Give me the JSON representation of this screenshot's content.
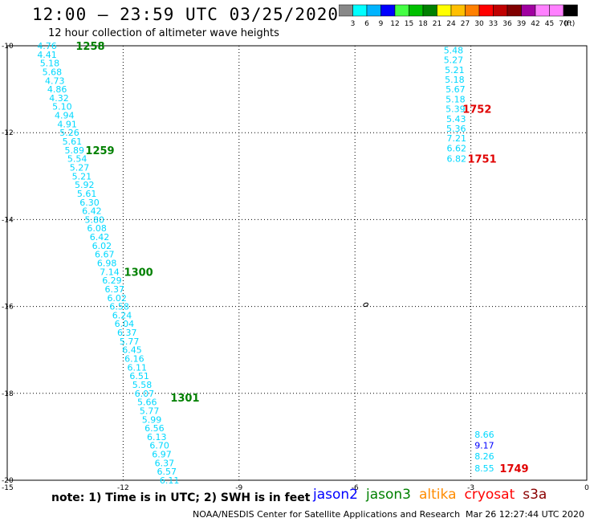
{
  "header": {
    "title": "12:00 – 23:59 UTC 03/25/2020",
    "subtitle": "12 hour collection of altimeter wave heights"
  },
  "legend": {
    "colors": [
      "#888888",
      "#00ffff",
      "#00b4ff",
      "#0000ff",
      "#44ff44",
      "#00c000",
      "#008000",
      "#ffff00",
      "#ffbf00",
      "#ff8000",
      "#ff0000",
      "#c00000",
      "#800000",
      "#a000a0",
      "#ff80ff",
      "#ff80ff",
      "#000000"
    ],
    "labels": [
      "3",
      "6",
      "9",
      "12",
      "15",
      "18",
      "21",
      "24",
      "27",
      "30",
      "33",
      "36",
      "39",
      "42",
      "45",
      "70"
    ],
    "unit": "(ft)"
  },
  "chart_data": {
    "type": "map",
    "x_ticks": [
      "-15",
      "-12",
      "-9",
      "-6",
      "-3",
      "0"
    ],
    "y_ticks": [
      "-10",
      "-12",
      "-14",
      "-16",
      "-18",
      "-20"
    ],
    "xlim": [
      -15,
      0
    ],
    "ylim": [
      -20,
      -10
    ],
    "lon_grid": [
      -12,
      -9,
      -6,
      -3
    ],
    "lat_grid": [
      -12,
      -14,
      -16,
      -18
    ],
    "island": {
      "lon": -5.72,
      "lat": -15.96
    },
    "tracks": [
      {
        "satellite": "jason3",
        "color": "#00d8ff",
        "points": [
          {
            "lon": -13.97,
            "lat": -10.0,
            "v": "4.76"
          },
          {
            "lon": -13.97,
            "lat": -10.2,
            "v": "4.41"
          },
          {
            "lon": -13.9,
            "lat": -10.4,
            "v": "5.18"
          },
          {
            "lon": -13.84,
            "lat": -10.6,
            "v": "5.68"
          },
          {
            "lon": -13.77,
            "lat": -10.8,
            "v": "4.73"
          },
          {
            "lon": -13.71,
            "lat": -11.0,
            "v": "4.86"
          },
          {
            "lon": -13.66,
            "lat": -11.2,
            "v": "4.32"
          },
          {
            "lon": -13.58,
            "lat": -11.4,
            "v": "5.10"
          },
          {
            "lon": -13.52,
            "lat": -11.6,
            "v": "4.94"
          },
          {
            "lon": -13.45,
            "lat": -11.8,
            "v": "4.91"
          },
          {
            "lon": -13.39,
            "lat": -12.0,
            "v": "5.26"
          },
          {
            "lon": -13.32,
            "lat": -12.2,
            "v": "5.61"
          },
          {
            "lon": -13.26,
            "lat": -12.4,
            "v": "5.89"
          },
          {
            "lon": -13.19,
            "lat": -12.6,
            "v": "5.54"
          },
          {
            "lon": -13.13,
            "lat": -12.8,
            "v": "5.27"
          },
          {
            "lon": -13.07,
            "lat": -13.0,
            "v": "5.21"
          },
          {
            "lon": -13.0,
            "lat": -13.2,
            "v": "5.92"
          },
          {
            "lon": -12.94,
            "lat": -13.4,
            "v": "5.61"
          },
          {
            "lon": -12.87,
            "lat": -13.6,
            "v": "6.30"
          },
          {
            "lon": -12.81,
            "lat": -13.8,
            "v": "6.42"
          },
          {
            "lon": -12.74,
            "lat": -14.0,
            "v": "5.80"
          },
          {
            "lon": -12.68,
            "lat": -14.2,
            "v": "6.08"
          },
          {
            "lon": -12.61,
            "lat": -14.4,
            "v": "6.42"
          },
          {
            "lon": -12.55,
            "lat": -14.6,
            "v": "6.02"
          },
          {
            "lon": -12.48,
            "lat": -14.8,
            "v": "6.67"
          },
          {
            "lon": -12.42,
            "lat": -15.0,
            "v": "6.98"
          },
          {
            "lon": -12.35,
            "lat": -15.2,
            "v": "7.14"
          },
          {
            "lon": -12.29,
            "lat": -15.4,
            "v": "6.29"
          },
          {
            "lon": -12.22,
            "lat": -15.6,
            "v": "6.37"
          },
          {
            "lon": -12.16,
            "lat": -15.8,
            "v": "6.02"
          },
          {
            "lon": -12.1,
            "lat": -16.0,
            "v": "6.58"
          },
          {
            "lon": -12.03,
            "lat": -16.2,
            "v": "6.24"
          },
          {
            "lon": -11.97,
            "lat": -16.4,
            "v": "6.04"
          },
          {
            "lon": -11.9,
            "lat": -16.6,
            "v": "6.37"
          },
          {
            "lon": -11.84,
            "lat": -16.8,
            "v": "5.77"
          },
          {
            "lon": -11.77,
            "lat": -17.0,
            "v": "6.45"
          },
          {
            "lon": -11.71,
            "lat": -17.2,
            "v": "6.16"
          },
          {
            "lon": -11.64,
            "lat": -17.4,
            "v": "6.11"
          },
          {
            "lon": -11.58,
            "lat": -17.6,
            "v": "6.51"
          },
          {
            "lon": -11.51,
            "lat": -17.8,
            "v": "5.58"
          },
          {
            "lon": -11.45,
            "lat": -18.0,
            "v": "6.07"
          },
          {
            "lon": -11.38,
            "lat": -18.2,
            "v": "5.66"
          },
          {
            "lon": -11.32,
            "lat": -18.4,
            "v": "5.77"
          },
          {
            "lon": -11.26,
            "lat": -18.6,
            "v": "5.99"
          },
          {
            "lon": -11.19,
            "lat": -18.8,
            "v": "6.56"
          },
          {
            "lon": -11.13,
            "lat": -19.0,
            "v": "6.13"
          },
          {
            "lon": -11.06,
            "lat": -19.2,
            "v": "6.70"
          },
          {
            "lon": -11.0,
            "lat": -19.4,
            "v": "6.97"
          },
          {
            "lon": -10.93,
            "lat": -19.6,
            "v": "6.37"
          },
          {
            "lon": -10.87,
            "lat": -19.8,
            "v": "6.57"
          },
          {
            "lon": -10.8,
            "lat": -20.0,
            "v": "6.11"
          }
        ],
        "times": [
          {
            "lon": -12.85,
            "lat": -10.0,
            "t": "1258"
          },
          {
            "lon": -12.6,
            "lat": -12.4,
            "t": "1259"
          },
          {
            "lon": -11.6,
            "lat": -15.2,
            "t": "1300"
          },
          {
            "lon": -10.4,
            "lat": -18.1,
            "t": "1301"
          }
        ]
      },
      {
        "satellite": "cryosat",
        "color": "#00d8ff",
        "points": [
          {
            "lon": -3.45,
            "lat": -10.1,
            "v": "5.48"
          },
          {
            "lon": -3.45,
            "lat": -10.32,
            "v": "5.27"
          },
          {
            "lon": -3.42,
            "lat": -10.55,
            "v": "5.21"
          },
          {
            "lon": -3.42,
            "lat": -10.78,
            "v": "5.18"
          },
          {
            "lon": -3.4,
            "lat": -11.0,
            "v": "5.67"
          },
          {
            "lon": -3.4,
            "lat": -11.23,
            "v": "5.18"
          },
          {
            "lon": -3.4,
            "lat": -11.45,
            "v": "5.39"
          },
          {
            "lon": -3.38,
            "lat": -11.68,
            "v": "5.43"
          },
          {
            "lon": -3.38,
            "lat": -11.9,
            "v": "5.36"
          },
          {
            "lon": -3.37,
            "lat": -12.13,
            "v": "7.21"
          },
          {
            "lon": -3.37,
            "lat": -12.36,
            "v": "6.62"
          },
          {
            "lon": -3.37,
            "lat": -12.6,
            "v": "6.82"
          }
        ],
        "times": [
          {
            "lon": -2.84,
            "lat": -11.45,
            "t": "1752"
          },
          {
            "lon": -2.71,
            "lat": -12.6,
            "t": "1751"
          }
        ]
      },
      {
        "satellite": "cryosat",
        "color": "#00d8ff",
        "points": [
          {
            "lon": -2.65,
            "lat": -18.95,
            "v": "8.66"
          },
          {
            "lon": -2.65,
            "lat": -19.2,
            "v": "9.17"
          },
          {
            "lon": -2.65,
            "lat": -19.45,
            "v": "8.26"
          },
          {
            "lon": -2.65,
            "lat": -19.72,
            "v": "8.55"
          }
        ],
        "highlight": {
          "index": 1,
          "color": "#0000ff"
        },
        "times": [
          {
            "lon": -1.88,
            "lat": -19.72,
            "t": "1749"
          }
        ]
      }
    ]
  },
  "footer": {
    "note": "note:  1) Time is in UTC;  2) SWH is in feet",
    "satellites": [
      {
        "name": "jason2",
        "color": "#0000ff"
      },
      {
        "name": "jason3",
        "color": "#008000"
      },
      {
        "name": "altika",
        "color": "#ff8c00"
      },
      {
        "name": "cryosat",
        "color": "#ff0000"
      },
      {
        "name": "s3a",
        "color": "#8b0000"
      }
    ],
    "credit": "NOAA/NESDIS Center for Satellite Applications and Research",
    "timestamp": "Mar 26 12:27:44 UTC 2020"
  }
}
